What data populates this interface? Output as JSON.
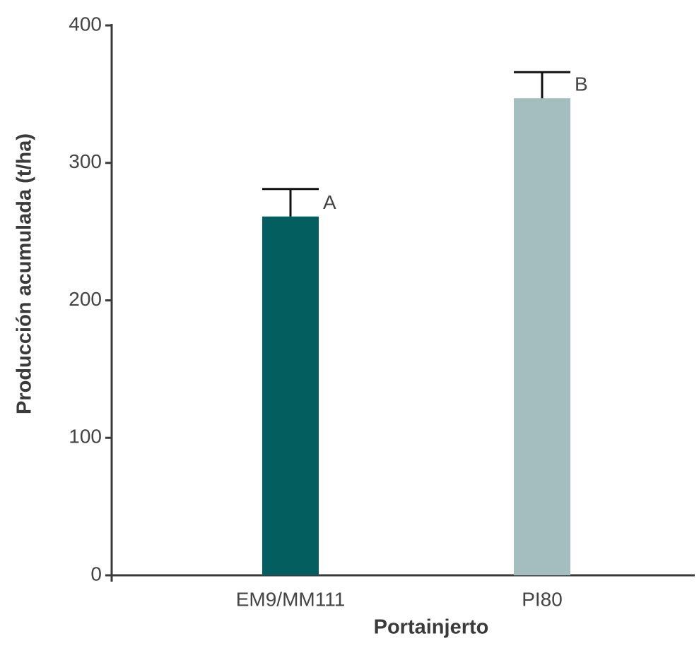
{
  "chart_data": {
    "type": "bar",
    "categories": [
      "EM9/MM111",
      "PI80"
    ],
    "values": [
      261,
      347
    ],
    "errors": [
      20,
      19
    ],
    "letters": [
      "A",
      "B"
    ],
    "colors": [
      "#035e60",
      "#a4bec0"
    ],
    "xlabel": "Portainjerto",
    "ylabel": "Producción acumulada (t/ha)",
    "ylim": [
      0,
      400
    ],
    "yticks": [
      0,
      100,
      200,
      300,
      400
    ],
    "grid": false
  }
}
